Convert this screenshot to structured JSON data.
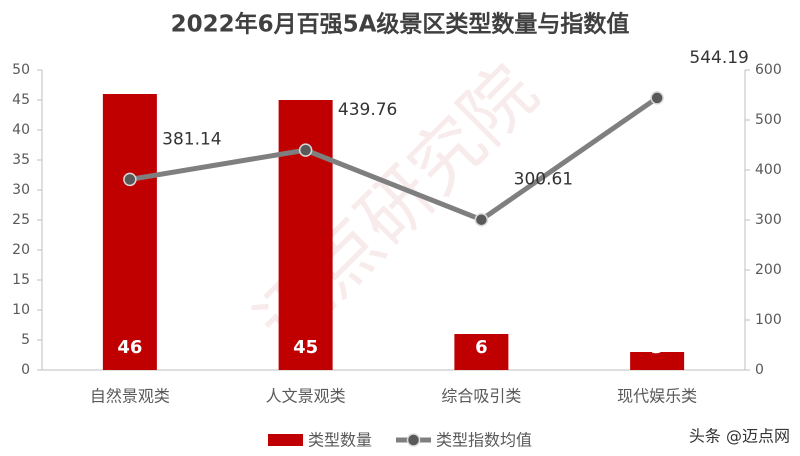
{
  "chart_data": {
    "type": "bar",
    "title": "2022年6月百强5A级景区类型数量与指数值",
    "categories": [
      "自然景观类",
      "人文景观类",
      "综合吸引类",
      "现代娱乐类"
    ],
    "series": [
      {
        "name": "类型数量",
        "type": "bar",
        "color": "#c00000",
        "values": [
          46,
          45,
          6,
          3
        ]
      },
      {
        "name": "类型指数均值",
        "type": "line",
        "axis": "y2",
        "color": "#7f7f7f",
        "values": [
          381.14,
          439.76,
          300.61,
          544.19
        ]
      }
    ],
    "ylim": [
      0,
      50
    ],
    "yticks": [
      0,
      5,
      10,
      15,
      20,
      25,
      30,
      35,
      40,
      45,
      50
    ],
    "y2lim": [
      0,
      600
    ],
    "y2ticks": [
      0,
      100,
      200,
      300,
      400,
      500,
      600
    ],
    "grid": false,
    "legend": "bottom",
    "watermark": "迈点研究院",
    "source": "头条 @迈点网"
  }
}
